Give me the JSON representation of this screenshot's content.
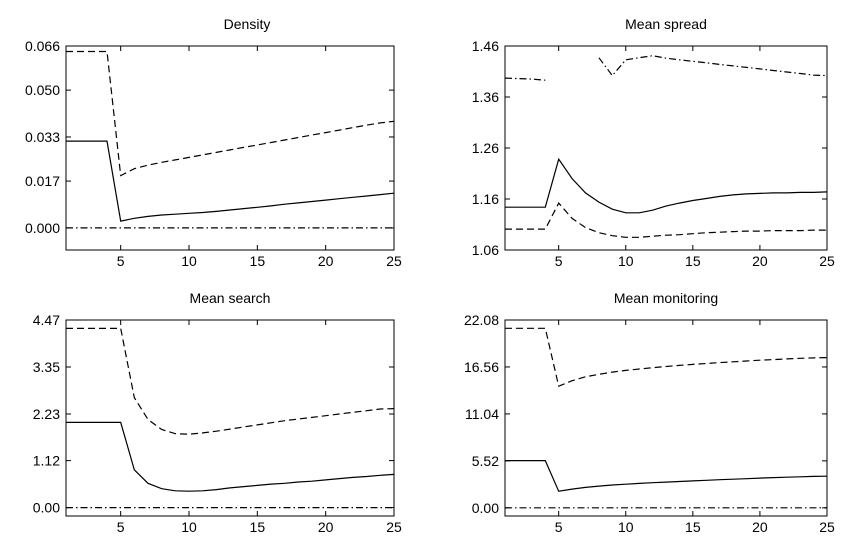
{
  "chart_data": [
    {
      "type": "line",
      "title": "Density",
      "xlim": [
        1,
        25
      ],
      "ylim": [
        -0.008,
        0.066
      ],
      "xticks": [
        "5",
        "10",
        "15",
        "20",
        "25"
      ],
      "yticks": [
        "0.000",
        "0.017",
        "0.033",
        "0.050",
        "0.066"
      ],
      "series": [
        {
          "style": "solid",
          "x": [
            1,
            2,
            3,
            4,
            5,
            6,
            7,
            8,
            9,
            10,
            11,
            12,
            13,
            14,
            15,
            16,
            17,
            18,
            19,
            20,
            21,
            22,
            23,
            24,
            25
          ],
          "y": [
            0.0315,
            0.0315,
            0.0315,
            0.0315,
            0.0025,
            0.0035,
            0.0042,
            0.0047,
            0.005,
            0.0053,
            0.0056,
            0.006,
            0.0065,
            0.007,
            0.0075,
            0.008,
            0.0086,
            0.0091,
            0.0096,
            0.0101,
            0.0106,
            0.0111,
            0.0116,
            0.0121,
            0.0126
          ]
        },
        {
          "style": "dashed",
          "x": [
            1,
            2,
            3,
            4,
            5,
            6,
            7,
            8,
            9,
            10,
            11,
            12,
            13,
            14,
            15,
            16,
            17,
            18,
            19,
            20,
            21,
            22,
            23,
            24,
            25
          ],
          "y": [
            0.064,
            0.064,
            0.064,
            0.064,
            0.019,
            0.0215,
            0.0228,
            0.0238,
            0.0247,
            0.0256,
            0.0265,
            0.0274,
            0.0283,
            0.0292,
            0.0301,
            0.031,
            0.0319,
            0.0328,
            0.0337,
            0.0346,
            0.0355,
            0.0364,
            0.0373,
            0.0381,
            0.0387
          ]
        },
        {
          "style": "dashdot",
          "x": [
            1,
            25
          ],
          "y": [
            0.0,
            0.0
          ]
        }
      ]
    },
    {
      "type": "line",
      "title": "Mean spread",
      "xlim": [
        1,
        25
      ],
      "ylim": [
        1.06,
        1.46
      ],
      "xticks": [
        "5",
        "10",
        "15",
        "20",
        "25"
      ],
      "yticks": [
        "1.06",
        "1.16",
        "1.26",
        "1.36",
        "1.46"
      ],
      "series": [
        {
          "style": "solid",
          "x": [
            1,
            2,
            3,
            4,
            5,
            6,
            7,
            8,
            9,
            10,
            11,
            12,
            13,
            14,
            15,
            16,
            17,
            18,
            19,
            20,
            21,
            22,
            23,
            24,
            25
          ],
          "y": [
            1.144,
            1.144,
            1.144,
            1.144,
            1.238,
            1.2,
            1.172,
            1.154,
            1.14,
            1.133,
            1.133,
            1.138,
            1.146,
            1.152,
            1.157,
            1.161,
            1.165,
            1.168,
            1.17,
            1.171,
            1.172,
            1.172,
            1.173,
            1.173,
            1.174
          ]
        },
        {
          "style": "dashed",
          "x": [
            1,
            2,
            3,
            4,
            5,
            6,
            7,
            8,
            9,
            10,
            11,
            12,
            13,
            14,
            15,
            16,
            17,
            18,
            19,
            20,
            21,
            22,
            23,
            24,
            25
          ],
          "y": [
            1.101,
            1.101,
            1.101,
            1.101,
            1.152,
            1.122,
            1.104,
            1.094,
            1.088,
            1.085,
            1.085,
            1.087,
            1.089,
            1.09,
            1.092,
            1.094,
            1.095,
            1.096,
            1.097,
            1.097,
            1.098,
            1.098,
            1.098,
            1.099,
            1.099
          ]
        },
        {
          "style": "dashdot",
          "x": [
            1,
            2,
            3,
            4,
            8,
            9,
            10,
            11,
            12,
            13,
            14,
            15,
            16,
            17,
            18,
            19,
            20,
            21,
            22,
            23,
            24,
            25
          ],
          "y": [
            1.397,
            1.396,
            1.395,
            1.393,
            1.437,
            1.402,
            1.433,
            1.437,
            1.441,
            1.436,
            1.433,
            1.43,
            1.427,
            1.424,
            1.421,
            1.418,
            1.415,
            1.412,
            1.409,
            1.406,
            1.403,
            1.402
          ]
        }
      ]
    },
    {
      "type": "line",
      "title": "Mean search",
      "xlim": [
        1,
        25
      ],
      "ylim": [
        -0.2,
        4.47
      ],
      "xticks": [
        "5",
        "10",
        "15",
        "20",
        "25"
      ],
      "yticks": [
        "0.00",
        "1.12",
        "2.23",
        "3.35",
        "4.47"
      ],
      "series": [
        {
          "style": "solid",
          "x": [
            1,
            2,
            3,
            4,
            5,
            6,
            7,
            8,
            9,
            10,
            11,
            12,
            13,
            14,
            15,
            16,
            17,
            18,
            19,
            20,
            21,
            22,
            23,
            24,
            25
          ],
          "y": [
            2.03,
            2.03,
            2.03,
            2.03,
            2.03,
            0.9,
            0.58,
            0.45,
            0.4,
            0.39,
            0.4,
            0.43,
            0.47,
            0.5,
            0.53,
            0.56,
            0.58,
            0.61,
            0.63,
            0.66,
            0.69,
            0.72,
            0.74,
            0.77,
            0.79
          ]
        },
        {
          "style": "dashed",
          "x": [
            1,
            2,
            3,
            4,
            5,
            6,
            7,
            8,
            9,
            10,
            11,
            12,
            13,
            14,
            15,
            16,
            17,
            18,
            19,
            20,
            21,
            22,
            23,
            24,
            25
          ],
          "y": [
            4.27,
            4.27,
            4.27,
            4.27,
            4.27,
            2.62,
            2.1,
            1.86,
            1.76,
            1.75,
            1.78,
            1.82,
            1.87,
            1.92,
            1.97,
            2.02,
            2.07,
            2.11,
            2.15,
            2.19,
            2.23,
            2.27,
            2.31,
            2.35,
            2.36
          ]
        },
        {
          "style": "dashdot",
          "x": [
            1,
            25
          ],
          "y": [
            0.0,
            0.0
          ]
        }
      ]
    },
    {
      "type": "line",
      "title": "Mean monitoring",
      "xlim": [
        1,
        25
      ],
      "ylim": [
        -0.96,
        22.08
      ],
      "xticks": [
        "5",
        "10",
        "15",
        "20",
        "25"
      ],
      "yticks": [
        "0.00",
        "5.52",
        "11.04",
        "16.56",
        "22.08"
      ],
      "series": [
        {
          "style": "solid",
          "x": [
            1,
            2,
            3,
            4,
            5,
            6,
            7,
            8,
            9,
            10,
            11,
            12,
            13,
            14,
            15,
            16,
            17,
            18,
            19,
            20,
            21,
            22,
            23,
            24,
            25
          ],
          "y": [
            5.55,
            5.55,
            5.55,
            5.55,
            1.95,
            2.2,
            2.4,
            2.55,
            2.68,
            2.78,
            2.87,
            2.95,
            3.03,
            3.1,
            3.17,
            3.24,
            3.31,
            3.37,
            3.43,
            3.49,
            3.55,
            3.6,
            3.65,
            3.69,
            3.72
          ]
        },
        {
          "style": "dashed",
          "x": [
            1,
            2,
            3,
            4,
            5,
            6,
            7,
            8,
            9,
            10,
            11,
            12,
            13,
            14,
            15,
            16,
            17,
            18,
            19,
            20,
            21,
            22,
            23,
            24,
            25
          ],
          "y": [
            21.1,
            21.1,
            21.1,
            21.1,
            14.3,
            14.95,
            15.4,
            15.7,
            15.95,
            16.15,
            16.32,
            16.47,
            16.61,
            16.74,
            16.86,
            16.97,
            17.07,
            17.17,
            17.26,
            17.35,
            17.43,
            17.51,
            17.58,
            17.63,
            17.66
          ]
        },
        {
          "style": "dashdot",
          "x": [
            1,
            25
          ],
          "y": [
            0.0,
            0.0
          ]
        }
      ]
    }
  ]
}
